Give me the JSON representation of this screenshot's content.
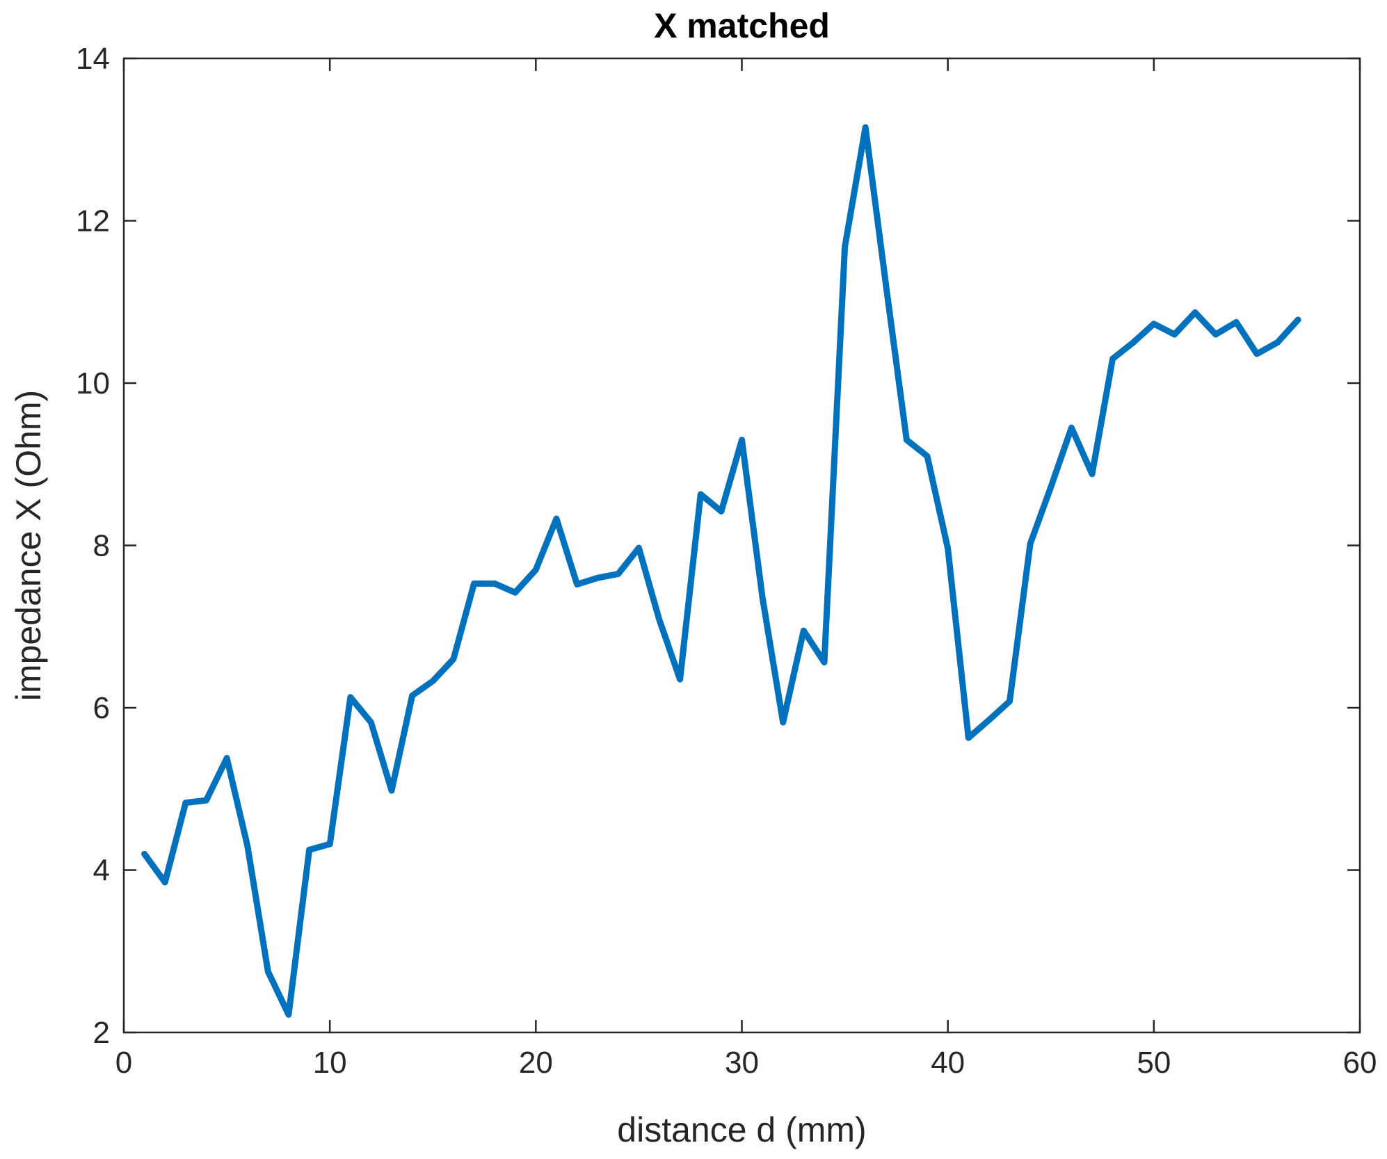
{
  "chart_data": {
    "type": "line",
    "title": "X matched",
    "xlabel": "distance d (mm)",
    "ylabel": "impedance X (Ohm)",
    "xlim": [
      0,
      60
    ],
    "ylim": [
      2,
      14
    ],
    "xticks": [
      0,
      10,
      20,
      30,
      40,
      50,
      60
    ],
    "yticks": [
      2,
      4,
      6,
      8,
      10,
      12,
      14
    ],
    "grid": false,
    "legend": "none",
    "series": [
      {
        "color": "#0072BD",
        "x": [
          1,
          2,
          3,
          4,
          5,
          6,
          7,
          8,
          9,
          10,
          11,
          12,
          13,
          14,
          15,
          16,
          17,
          18,
          19,
          20,
          21,
          22,
          23,
          24,
          25,
          26,
          27,
          28,
          29,
          30,
          31,
          32,
          33,
          34,
          35,
          36,
          37,
          38,
          39,
          40,
          41,
          42,
          43,
          44,
          45,
          46,
          47,
          48,
          49,
          50,
          51,
          52,
          53,
          54,
          55,
          56,
          57
        ],
        "y": [
          4.2,
          3.85,
          4.83,
          4.86,
          5.38,
          4.3,
          2.75,
          2.22,
          4.25,
          4.32,
          6.13,
          5.82,
          4.98,
          6.15,
          6.33,
          6.6,
          7.53,
          7.53,
          7.42,
          7.7,
          8.33,
          7.52,
          7.6,
          7.65,
          7.97,
          7.08,
          6.35,
          8.63,
          8.42,
          9.3,
          7.36,
          5.82,
          6.95,
          6.56,
          11.68,
          13.15,
          11.2,
          9.3,
          9.1,
          7.96,
          5.63,
          5.85,
          6.08,
          8.02,
          8.72,
          9.45,
          8.88,
          10.3,
          10.5,
          10.73,
          10.6,
          10.87,
          10.6,
          10.75,
          10.36,
          10.5,
          10.78
        ]
      }
    ]
  }
}
